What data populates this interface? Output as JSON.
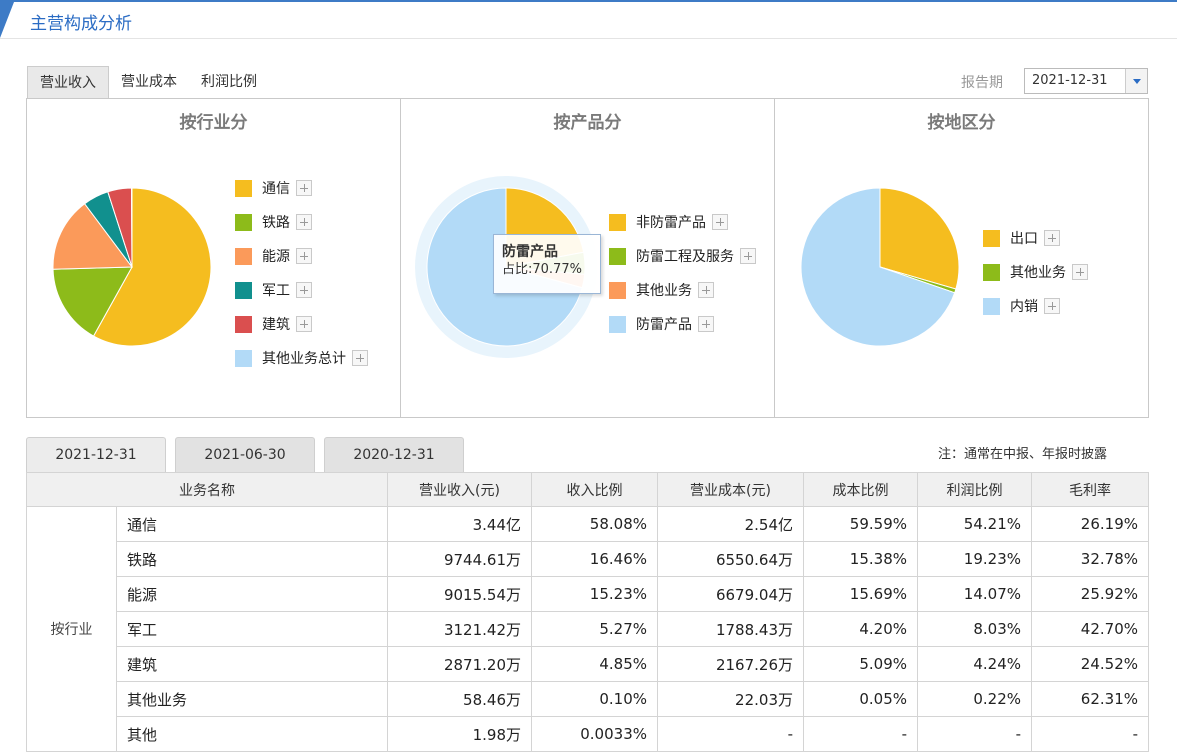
{
  "header": {
    "title": "主营构成分析"
  },
  "tabs": [
    "营业收入",
    "营业成本",
    "利润比例"
  ],
  "period": {
    "label": "报告期",
    "value": "2021-12-31"
  },
  "panels": [
    {
      "title": "按行业分",
      "slices": [
        {
          "name": "通信",
          "color": "#f5bd1f",
          "value": 58.08
        },
        {
          "name": "铁路",
          "color": "#8dbb1a",
          "value": 16.46
        },
        {
          "name": "能源",
          "color": "#fb9a5a",
          "value": 15.23
        },
        {
          "name": "军工",
          "color": "#11908e",
          "value": 5.27
        },
        {
          "name": "建筑",
          "color": "#da4f4f",
          "value": 4.85
        },
        {
          "name": "其他业务总计",
          "color": "#b2daf7",
          "value": 0.1
        }
      ]
    },
    {
      "title": "按产品分",
      "slices": [
        {
          "name": "非防雷产品",
          "color": "#f5bd1f",
          "value": 22.0
        },
        {
          "name": "防雷工程及服务",
          "color": "#8dbb1a",
          "value": 4.5
        },
        {
          "name": "其他业务",
          "color": "#fb9a5a",
          "value": 2.73
        },
        {
          "name": "防雷产品",
          "color": "#b2daf7",
          "value": 70.77
        }
      ],
      "tooltip": {
        "title": "防雷产品",
        "text": "占比:70.77%"
      }
    },
    {
      "title": "按地区分",
      "slices": [
        {
          "name": "出口",
          "color": "#f5bd1f",
          "value": 29.5
        },
        {
          "name": "其他业务",
          "color": "#8dbb1a",
          "value": 0.8
        },
        {
          "name": "内销",
          "color": "#b2daf7",
          "value": 69.7
        }
      ]
    }
  ],
  "date_tabs": [
    "2021-12-31",
    "2021-06-30",
    "2020-12-31"
  ],
  "note": "注：通常在中报、年报时披露",
  "table": {
    "columns": [
      "业务名称",
      "营业收入(元)",
      "收入比例",
      "营业成本(元)",
      "成本比例",
      "利润比例",
      "毛利率"
    ],
    "group": "按行业",
    "rows": [
      [
        "通信",
        "3.44亿",
        "58.08%",
        "2.54亿",
        "59.59%",
        "54.21%",
        "26.19%"
      ],
      [
        "铁路",
        "9744.61万",
        "16.46%",
        "6550.64万",
        "15.38%",
        "19.23%",
        "32.78%"
      ],
      [
        "能源",
        "9015.54万",
        "15.23%",
        "6679.04万",
        "15.69%",
        "14.07%",
        "25.92%"
      ],
      [
        "军工",
        "3121.42万",
        "5.27%",
        "1788.43万",
        "4.20%",
        "8.03%",
        "42.70%"
      ],
      [
        "建筑",
        "2871.20万",
        "4.85%",
        "2167.26万",
        "5.09%",
        "4.24%",
        "24.52%"
      ],
      [
        "其他业务",
        "58.46万",
        "0.10%",
        "22.03万",
        "0.05%",
        "0.22%",
        "62.31%"
      ],
      [
        "其他",
        "1.98万",
        "0.0033%",
        "-",
        "-",
        "-",
        "-"
      ]
    ]
  }
}
